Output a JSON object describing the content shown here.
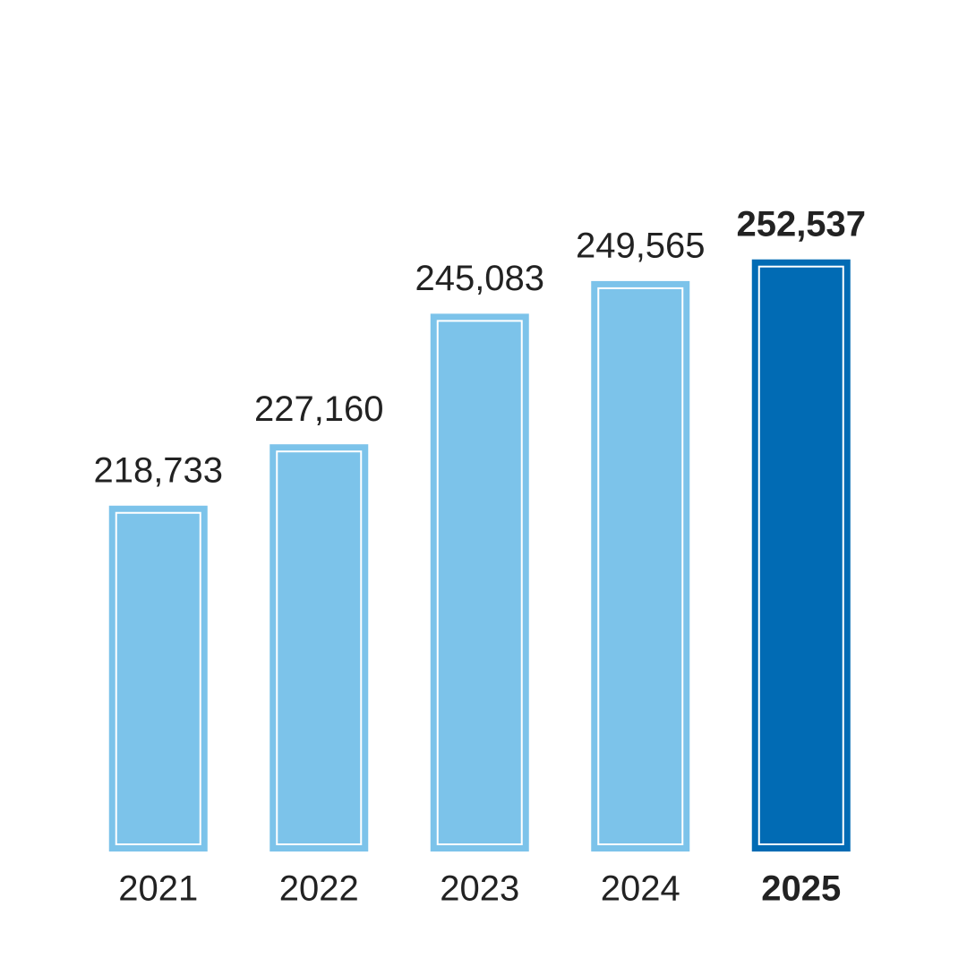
{
  "chart_data": {
    "type": "bar",
    "categories": [
      "2021",
      "2022",
      "2023",
      "2024",
      "2025"
    ],
    "values": [
      218733,
      227160,
      245083,
      249565,
      252537
    ],
    "value_labels": [
      "218,733",
      "227,160",
      "245,083",
      "249,565",
      "252,537"
    ],
    "colors": [
      "#7cc3ea",
      "#7cc3ea",
      "#7cc3ea",
      "#7cc3ea",
      "#016bb4"
    ],
    "ylim": [
      172000,
      260000
    ]
  }
}
